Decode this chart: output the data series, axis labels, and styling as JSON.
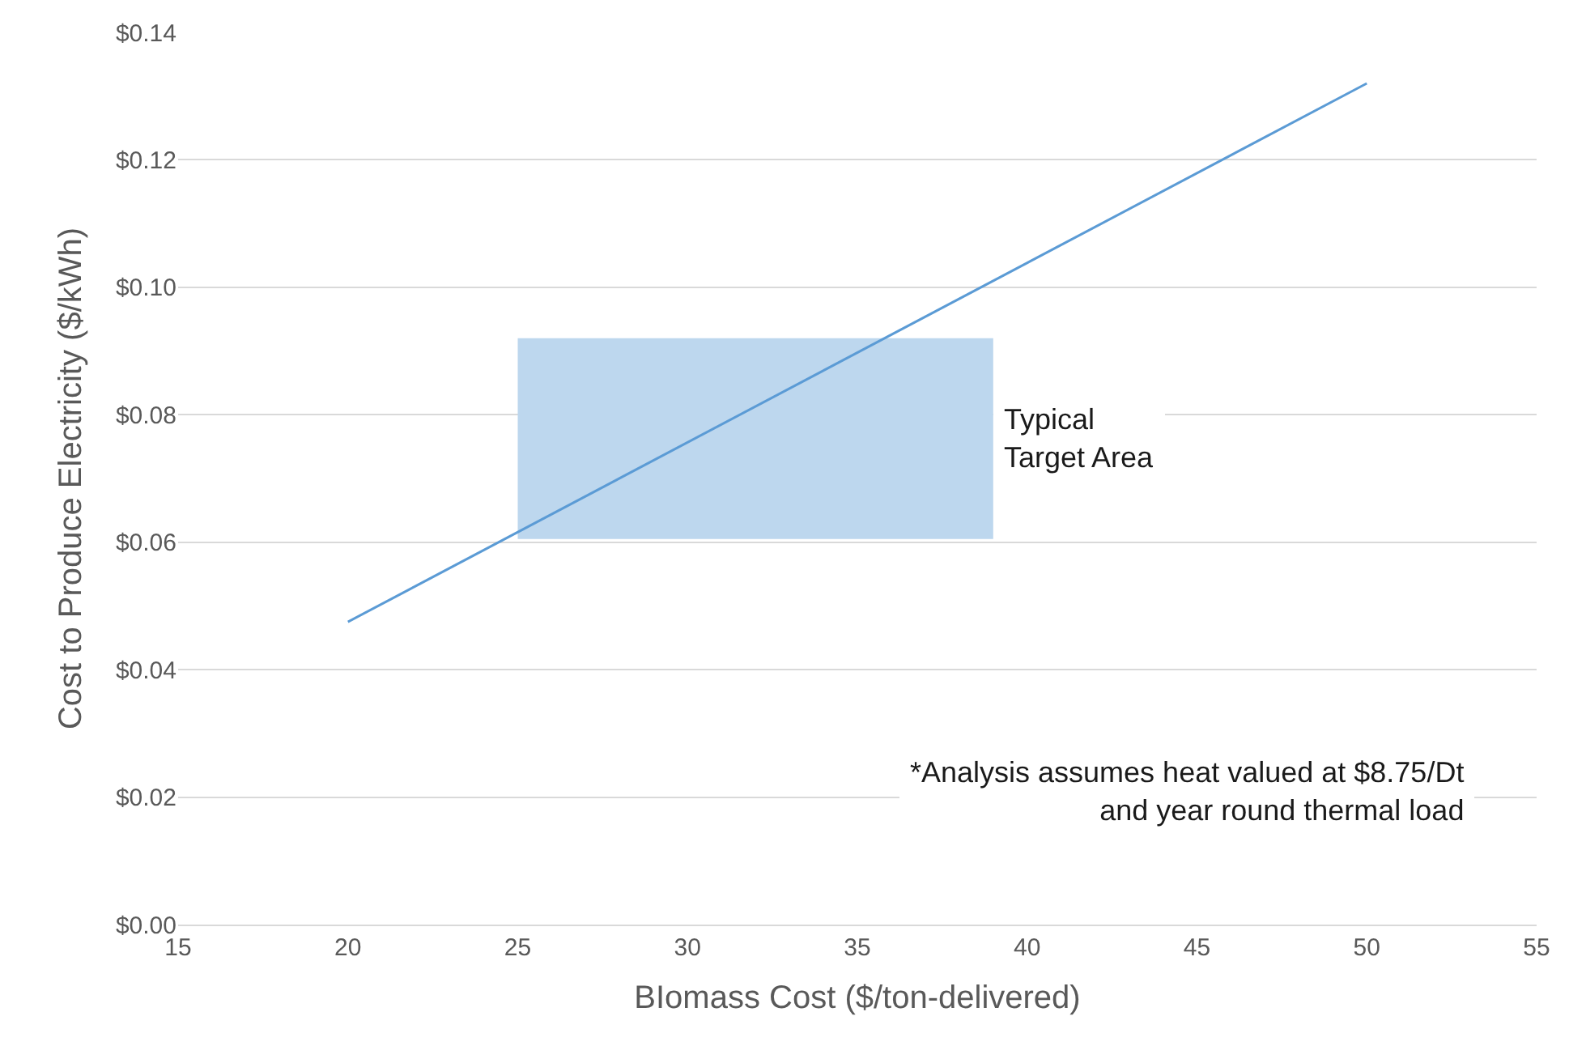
{
  "chart_data": {
    "type": "line",
    "xlabel": "BIomass Cost ($/ton-delivered)",
    "ylabel": "Cost to Produce Electricity ($/kWh)",
    "series": [
      {
        "type": "area",
        "color": "#bdd7ee",
        "x": [
          25,
          25,
          39,
          39
        ],
        "values": [
          0.0605,
          0.092,
          0.092,
          0.0605
        ]
      },
      {
        "color": "#5b9bd5",
        "x": [
          20,
          50
        ],
        "values": [
          0.0475,
          0.132
        ]
      }
    ],
    "annotations": [
      "Typical\nTarget Area",
      "*Analysis assumes heat valued at $8.75/Dt\nand year round thermal load"
    ],
    "xlim": [
      15,
      55
    ],
    "xticks": [
      15,
      20,
      25,
      30,
      35,
      40,
      45,
      50,
      55
    ],
    "ylim": [
      0,
      0.14
    ],
    "yticks": [
      {
        "value": 0,
        "label": "$0.00"
      },
      {
        "value": 0.02,
        "label": "$0.02"
      },
      {
        "value": 0.04,
        "label": "$0.04"
      },
      {
        "value": 0.06,
        "label": "$0.06"
      },
      {
        "value": 0.08,
        "label": "$0.08"
      },
      {
        "value": 0.1,
        "label": "$0.10"
      },
      {
        "value": 0.12,
        "label": "$0.12"
      },
      {
        "value": 0.14,
        "label": "$0.14"
      }
    ],
    "grid": "y"
  }
}
